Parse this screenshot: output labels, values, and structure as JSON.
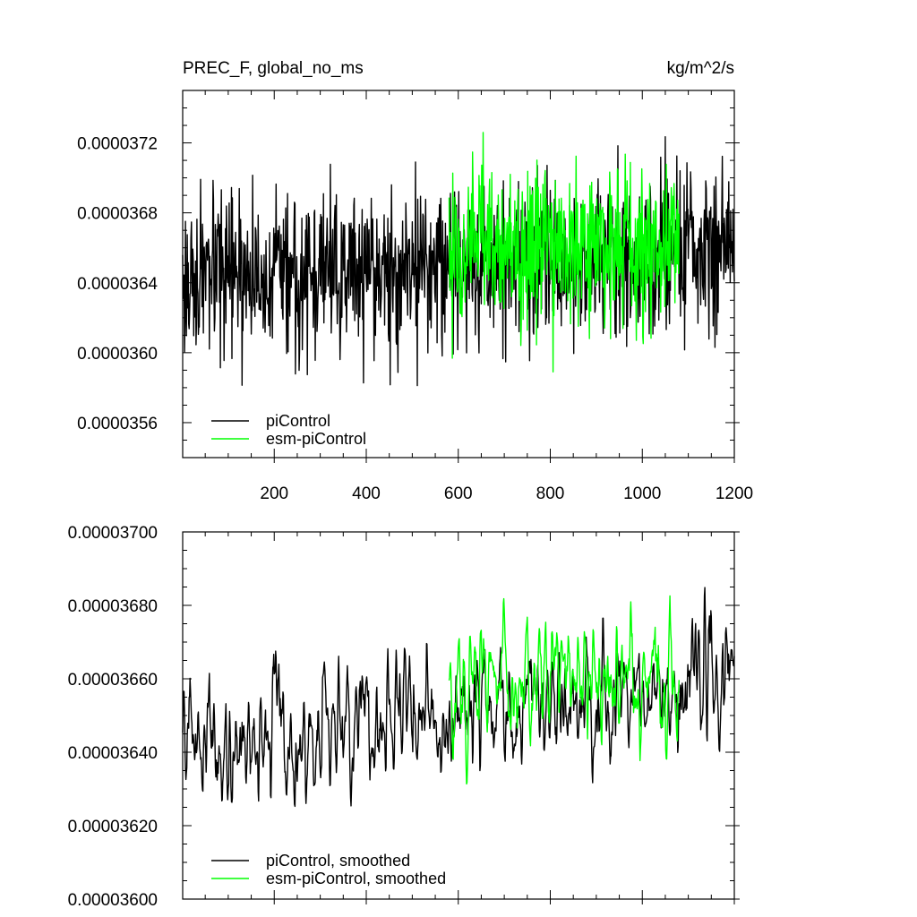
{
  "chart_data": [
    {
      "type": "line",
      "title": "PREC_F, global_no_ms",
      "units": "kg/m^2/s",
      "xlabel": "",
      "ylabel": "",
      "xlim": [
        1,
        1200
      ],
      "ylim": [
        3.54e-05,
        3.75e-05
      ],
      "x_ticks": [
        "200",
        "400",
        "600",
        "800",
        "1000",
        "1200"
      ],
      "y_ticks": [
        "0.0000356",
        "0.0000360",
        "0.0000364",
        "0.0000368",
        "0.0000372"
      ],
      "grid": false,
      "legend_position": "bottom-left",
      "series": [
        {
          "name": "piControl",
          "color": "#000000",
          "x_range": [
            1,
            1200
          ],
          "mean_start": 3.64e-05,
          "mean_end": 3.66e-05,
          "spread": 4e-07
        },
        {
          "name": "esm-piControl",
          "color": "#00ff00",
          "x_range": [
            580,
            1080
          ],
          "mean_start": 3.662e-05,
          "mean_end": 3.662e-05,
          "spread": 4e-07
        }
      ]
    },
    {
      "type": "line",
      "title": "",
      "xlabel": "",
      "ylabel": "",
      "xlim": [
        1,
        1200
      ],
      "ylim": [
        3.6e-05,
        3.7e-05
      ],
      "y_ticks": [
        "0.00003600",
        "0.00003620",
        "0.00003640",
        "0.00003660",
        "0.00003680",
        "0.00003700"
      ],
      "grid": false,
      "legend_position": "bottom-left",
      "series": [
        {
          "name": "piControl, smoothed",
          "color": "#000000",
          "x_range": [
            1,
            1200
          ],
          "mean_start": 3.64e-05,
          "mean_end": 3.662e-05,
          "spread": 1e-07
        },
        {
          "name": "esm-piControl, smoothed",
          "color": "#00ff00",
          "x_range": [
            580,
            1080
          ],
          "mean_start": 3.66e-05,
          "mean_end": 3.66e-05,
          "spread": 1e-07
        }
      ]
    }
  ]
}
